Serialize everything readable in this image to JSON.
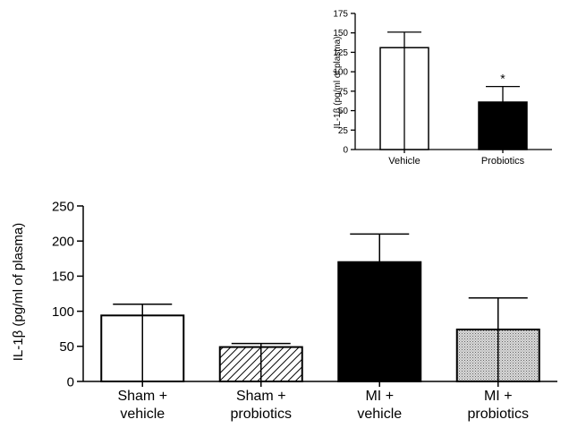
{
  "chart_data": [
    {
      "type": "bar",
      "panel": "inset",
      "categories": [
        "Vehicle",
        "Probiotics"
      ],
      "values": [
        131,
        61
      ],
      "error_upper": [
        151,
        81
      ],
      "ylabel": "IL-1β (pg/ml of plasma)",
      "xlabel": "",
      "ylim": [
        0,
        175
      ],
      "yticks": [
        "0",
        "25",
        "50",
        "75",
        "100",
        "125",
        "150",
        "175"
      ],
      "fills": [
        "white",
        "black"
      ],
      "annotations": [
        "",
        "*"
      ],
      "grid": false
    },
    {
      "type": "bar",
      "panel": "main",
      "categories": [
        [
          "Sham +",
          "vehicle"
        ],
        [
          "Sham +",
          "probiotics"
        ],
        [
          "MI +",
          "vehicle"
        ],
        [
          "MI +",
          "probiotics"
        ]
      ],
      "values": [
        94,
        49,
        170,
        74
      ],
      "error_upper": [
        110,
        54,
        210,
        119
      ],
      "ylabel": "IL-1β (pg/ml of plasma)",
      "xlabel": "",
      "ylim": [
        0,
        250
      ],
      "yticks": [
        "0",
        "50",
        "100",
        "150",
        "200",
        "250"
      ],
      "fills": [
        "white",
        "hatched",
        "black",
        "dotted"
      ],
      "grid": false
    }
  ]
}
